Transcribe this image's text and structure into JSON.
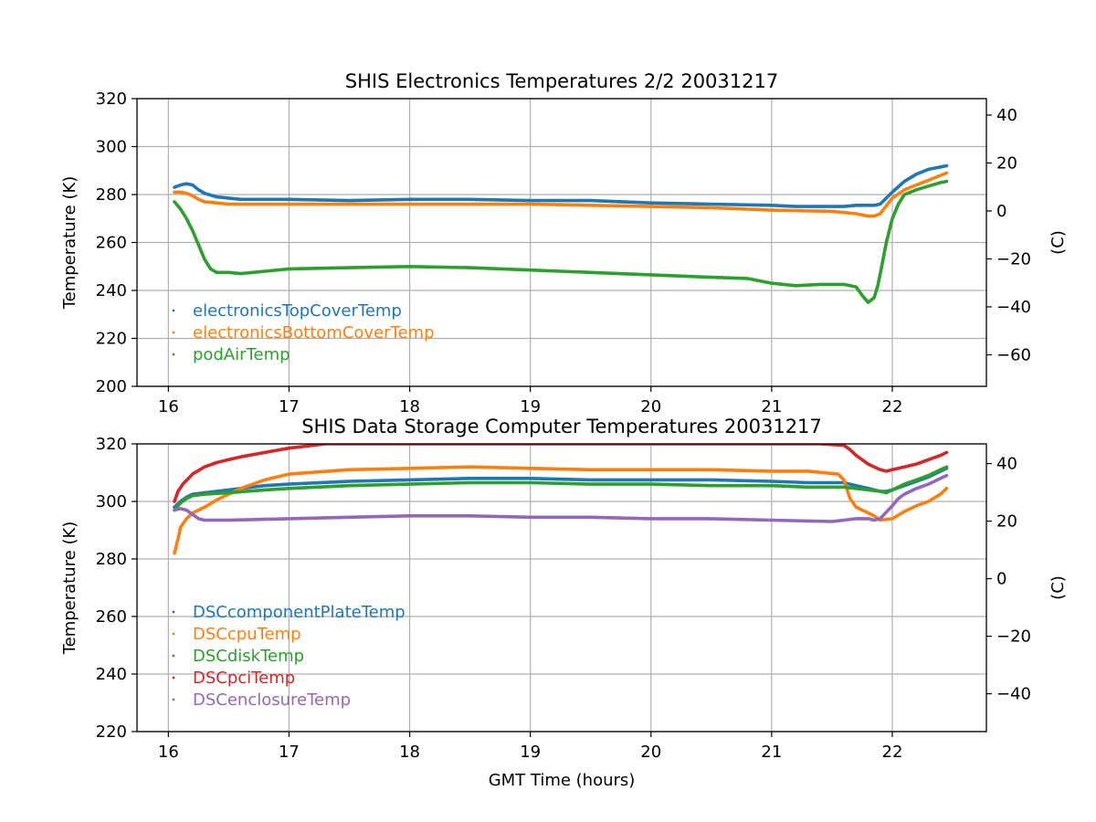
{
  "chart_data": [
    {
      "type": "line",
      "title": "SHIS Electronics Temperatures 2/2 20031217",
      "xlabel": "",
      "ylabel": "Temperature (K)",
      "y2label": "(C)",
      "xlim": [
        15.74,
        22.78
      ],
      "ylim": [
        200,
        320
      ],
      "y2lim": [
        -73.15,
        46.85
      ],
      "xticks": [
        16,
        17,
        18,
        19,
        20,
        21,
        22
      ],
      "yticks": [
        200,
        220,
        240,
        260,
        280,
        300,
        320
      ],
      "y2ticks": [
        -60,
        -40,
        -20,
        0,
        20,
        40
      ],
      "grid": true,
      "legend_position": "lower-left",
      "series": [
        {
          "name": "electronicsTopCoverTemp",
          "color": "#1f77b4",
          "x": [
            16.05,
            16.1,
            16.15,
            16.2,
            16.25,
            16.3,
            16.4,
            16.5,
            16.6,
            17.0,
            17.5,
            18.0,
            18.5,
            19.0,
            19.5,
            20.0,
            20.5,
            21.0,
            21.2,
            21.5,
            21.6,
            21.7,
            21.8,
            21.85,
            21.9,
            22.0,
            22.1,
            22.2,
            22.3,
            22.4,
            22.45
          ],
          "y": [
            283,
            284,
            284.5,
            284,
            282,
            280.5,
            279,
            278.5,
            278,
            278,
            277.5,
            278,
            278,
            277.5,
            277.5,
            276.5,
            276,
            275.5,
            275,
            275,
            275,
            275.5,
            275.5,
            275.5,
            276,
            281,
            285.5,
            288.5,
            290.5,
            291.5,
            292
          ]
        },
        {
          "name": "electronicsBottomCoverTemp",
          "color": "#ff7f0e",
          "x": [
            16.05,
            16.1,
            16.15,
            16.2,
            16.25,
            16.3,
            16.4,
            16.5,
            17.0,
            17.5,
            18.0,
            18.5,
            19.0,
            19.5,
            20.0,
            20.5,
            21.0,
            21.5,
            21.6,
            21.7,
            21.8,
            21.85,
            21.9,
            22.0,
            22.1,
            22.2,
            22.3,
            22.4,
            22.45
          ],
          "y": [
            281,
            281,
            280.5,
            279.5,
            278,
            277,
            276.5,
            276,
            276,
            276,
            276,
            276,
            276,
            275.5,
            275,
            274.5,
            273.5,
            273,
            272.5,
            272,
            271,
            271,
            272,
            278.5,
            282,
            284,
            286,
            288,
            289
          ]
        },
        {
          "name": "podAirTemp",
          "color": "#2ca02c",
          "x": [
            16.05,
            16.1,
            16.15,
            16.2,
            16.25,
            16.3,
            16.35,
            16.4,
            16.5,
            16.6,
            16.8,
            17.0,
            17.5,
            18.0,
            18.5,
            19.0,
            19.5,
            20.0,
            20.5,
            20.8,
            21.0,
            21.2,
            21.4,
            21.6,
            21.7,
            21.75,
            21.8,
            21.85,
            21.88,
            21.92,
            21.95,
            22.0,
            22.05,
            22.1,
            22.2,
            22.3,
            22.4,
            22.45
          ],
          "y": [
            277,
            274,
            270,
            265,
            259,
            253,
            249,
            247.5,
            247.5,
            247,
            248,
            249,
            249.5,
            250,
            249.5,
            248.5,
            247.5,
            246.5,
            245.5,
            245,
            243,
            242,
            242.5,
            242.5,
            241.5,
            238,
            235,
            237,
            242,
            252,
            260,
            270,
            276,
            280,
            282,
            283.5,
            285,
            285.5
          ]
        }
      ]
    },
    {
      "type": "line",
      "title": "SHIS Data Storage Computer Temperatures 20031217",
      "xlabel": "GMT Time (hours)",
      "ylabel": "Temperature (K)",
      "y2label": "(C)",
      "xlim": [
        15.74,
        22.78
      ],
      "ylim": [
        220,
        320
      ],
      "y2lim": [
        -53.15,
        46.85
      ],
      "xticks": [
        16,
        17,
        18,
        19,
        20,
        21,
        22
      ],
      "yticks": [
        220,
        240,
        260,
        280,
        300,
        320
      ],
      "y2ticks": [
        -40,
        -20,
        0,
        20,
        40
      ],
      "grid": true,
      "legend_position": "lower-left",
      "series": [
        {
          "name": "DSCcomponentPlateTemp",
          "color": "#1f77b4",
          "x": [
            16.05,
            16.1,
            16.15,
            16.2,
            16.3,
            16.5,
            16.8,
            17.0,
            17.5,
            18.0,
            18.5,
            19.0,
            19.5,
            20.0,
            20.5,
            21.0,
            21.3,
            21.6,
            21.7,
            21.8,
            21.9,
            21.95,
            22.0,
            22.1,
            22.2,
            22.3,
            22.4,
            22.45
          ],
          "y": [
            298,
            300,
            301.5,
            302.5,
            303,
            304,
            305.5,
            306,
            307,
            307.5,
            308,
            308,
            307.5,
            307.5,
            307.5,
            307,
            306.5,
            306.5,
            305.5,
            304.5,
            303.5,
            303.5,
            304,
            305.5,
            307,
            308.5,
            310.5,
            311.5
          ]
        },
        {
          "name": "DSCcpuTemp",
          "color": "#ff7f0e",
          "x": [
            16.05,
            16.08,
            16.1,
            16.15,
            16.2,
            16.3,
            16.4,
            16.5,
            16.6,
            16.8,
            17.0,
            17.5,
            18.0,
            18.5,
            19.0,
            19.5,
            20.0,
            20.5,
            21.0,
            21.3,
            21.55,
            21.6,
            21.65,
            21.7,
            21.75,
            21.8,
            21.85,
            21.9,
            22.0,
            22.1,
            22.2,
            22.3,
            22.4,
            22.45
          ],
          "y": [
            282,
            287,
            291,
            294,
            296,
            298,
            300.5,
            302.5,
            304.5,
            307.5,
            309.5,
            311,
            311.5,
            312,
            311.5,
            311,
            311,
            311,
            310.5,
            310.5,
            309.5,
            307.5,
            301,
            298,
            297,
            296,
            295,
            293.5,
            294,
            296.5,
            298.5,
            300,
            302.5,
            304.5
          ]
        },
        {
          "name": "DSCdiskTemp",
          "color": "#2ca02c",
          "x": [
            16.05,
            16.1,
            16.15,
            16.2,
            16.3,
            16.5,
            16.8,
            17.0,
            17.5,
            18.0,
            18.5,
            19.0,
            19.5,
            20.0,
            20.5,
            21.0,
            21.3,
            21.6,
            21.7,
            21.8,
            21.9,
            21.95,
            22.0,
            22.1,
            22.2,
            22.3,
            22.4,
            22.45
          ],
          "y": [
            297,
            299.5,
            301,
            302,
            302.5,
            303,
            304,
            304.5,
            305.5,
            306,
            306.5,
            306.5,
            306,
            306,
            305.5,
            305.5,
            305,
            305,
            304.5,
            304,
            303.5,
            303,
            304,
            306,
            307.5,
            309,
            311,
            312
          ]
        },
        {
          "name": "DSCpciTemp",
          "color": "#d62728",
          "x": [
            16.05,
            16.08,
            16.12,
            16.2,
            16.3,
            16.4,
            16.5,
            16.6,
            16.8,
            17.0,
            17.2,
            17.3,
            21.0,
            21.2,
            21.4,
            21.6,
            21.65,
            21.7,
            21.8,
            21.9,
            21.95,
            22.0,
            22.1,
            22.2,
            22.3,
            22.4,
            22.45
          ],
          "y": [
            300,
            303.5,
            306,
            309.5,
            312,
            313.5,
            314.5,
            315.5,
            317,
            318.5,
            319.5,
            320,
            320,
            320,
            320,
            319.5,
            318,
            316,
            313,
            311,
            310.5,
            311,
            312,
            313,
            314.5,
            316,
            317
          ]
        },
        {
          "name": "DSCenclosureTemp",
          "color": "#9467bd",
          "x": [
            16.05,
            16.1,
            16.15,
            16.2,
            16.25,
            16.3,
            16.5,
            17.0,
            17.5,
            18.0,
            18.5,
            19.0,
            19.5,
            20.0,
            20.5,
            21.0,
            21.5,
            21.6,
            21.7,
            21.8,
            21.85,
            21.9,
            22.0,
            22.05,
            22.1,
            22.2,
            22.3,
            22.4,
            22.45
          ],
          "y": [
            297,
            297.5,
            297,
            295.5,
            294,
            293.5,
            293.5,
            294,
            294.5,
            295,
            295,
            294.5,
            294.5,
            294,
            294,
            293.5,
            293,
            293.5,
            294,
            294,
            293.5,
            294,
            298.5,
            301,
            302.5,
            304.5,
            306,
            308,
            309
          ]
        }
      ]
    }
  ]
}
